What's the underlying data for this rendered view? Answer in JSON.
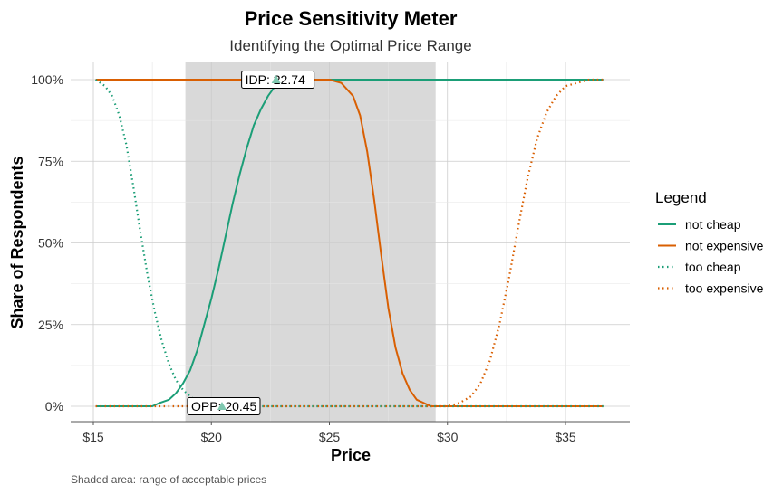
{
  "chart_data": {
    "type": "line",
    "title": "Price Sensitivity Meter",
    "subtitle": "Identifying the Optimal Price Range",
    "xlabel": "Price",
    "ylabel": "Share of Respondents",
    "caption": "Shaded area: range of acceptable prices",
    "xlim": [
      15,
      37
    ],
    "ylim": [
      0,
      1
    ],
    "x_ticks": [
      15,
      20,
      25,
      30,
      35
    ],
    "x_tick_labels": [
      "$15",
      "$20",
      "$25",
      "$30",
      "$35"
    ],
    "y_ticks": [
      0,
      0.25,
      0.5,
      0.75,
      1
    ],
    "y_tick_labels": [
      "0%",
      "25%",
      "50%",
      "75%",
      "100%"
    ],
    "grid": true,
    "legend": {
      "title": "Legend",
      "position": "right"
    },
    "acceptable_range": [
      18.9,
      29.5
    ],
    "annotations": [
      {
        "label": "IDP: 22.74",
        "x": 22.74,
        "y": 1.0
      },
      {
        "label": "OPP: 20.45",
        "x": 20.45,
        "y": 0.0
      }
    ],
    "series": [
      {
        "name": "not cheap",
        "color": "#1b9e77",
        "dash": "solid",
        "points": [
          [
            15.1,
            0
          ],
          [
            17.5,
            0
          ],
          [
            17.8,
            0.01
          ],
          [
            18.2,
            0.02
          ],
          [
            18.5,
            0.04
          ],
          [
            18.8,
            0.07
          ],
          [
            19.1,
            0.11
          ],
          [
            19.4,
            0.17
          ],
          [
            19.7,
            0.25
          ],
          [
            20.0,
            0.33
          ],
          [
            20.3,
            0.42
          ],
          [
            20.6,
            0.52
          ],
          [
            20.9,
            0.62
          ],
          [
            21.2,
            0.71
          ],
          [
            21.5,
            0.79
          ],
          [
            21.8,
            0.86
          ],
          [
            22.1,
            0.91
          ],
          [
            22.4,
            0.95
          ],
          [
            22.7,
            0.98
          ],
          [
            23.0,
            0.99
          ],
          [
            23.5,
            1.0
          ],
          [
            36.6,
            1.0
          ]
        ]
      },
      {
        "name": "not expensive",
        "color": "#d95f02",
        "dash": "solid",
        "points": [
          [
            15.1,
            1.0
          ],
          [
            25.0,
            1.0
          ],
          [
            25.5,
            0.99
          ],
          [
            26.0,
            0.95
          ],
          [
            26.3,
            0.89
          ],
          [
            26.6,
            0.78
          ],
          [
            26.9,
            0.63
          ],
          [
            27.2,
            0.46
          ],
          [
            27.5,
            0.3
          ],
          [
            27.8,
            0.18
          ],
          [
            28.1,
            0.1
          ],
          [
            28.4,
            0.05
          ],
          [
            28.7,
            0.02
          ],
          [
            29.0,
            0.01
          ],
          [
            29.3,
            0
          ],
          [
            36.6,
            0
          ]
        ]
      },
      {
        "name": "too cheap",
        "color": "#1b9e77",
        "dash": "dotted",
        "points": [
          [
            15.1,
            1.0
          ],
          [
            15.5,
            0.98
          ],
          [
            15.8,
            0.95
          ],
          [
            16.1,
            0.89
          ],
          [
            16.4,
            0.8
          ],
          [
            16.7,
            0.67
          ],
          [
            17.0,
            0.53
          ],
          [
            17.3,
            0.4
          ],
          [
            17.6,
            0.29
          ],
          [
            17.9,
            0.2
          ],
          [
            18.2,
            0.13
          ],
          [
            18.5,
            0.08
          ],
          [
            18.8,
            0.05
          ],
          [
            19.1,
            0.03
          ],
          [
            19.5,
            0.01
          ],
          [
            20.0,
            0
          ],
          [
            36.6,
            0
          ]
        ]
      },
      {
        "name": "too expensive",
        "color": "#d95f02",
        "dash": "dotted",
        "points": [
          [
            15.1,
            0
          ],
          [
            30.0,
            0
          ],
          [
            30.5,
            0.01
          ],
          [
            31.0,
            0.03
          ],
          [
            31.4,
            0.07
          ],
          [
            31.8,
            0.14
          ],
          [
            32.2,
            0.25
          ],
          [
            32.6,
            0.39
          ],
          [
            33.0,
            0.55
          ],
          [
            33.4,
            0.7
          ],
          [
            33.8,
            0.82
          ],
          [
            34.2,
            0.9
          ],
          [
            34.6,
            0.95
          ],
          [
            35.0,
            0.98
          ],
          [
            35.5,
            0.99
          ],
          [
            36.0,
            1.0
          ],
          [
            36.6,
            1.0
          ]
        ]
      }
    ]
  }
}
